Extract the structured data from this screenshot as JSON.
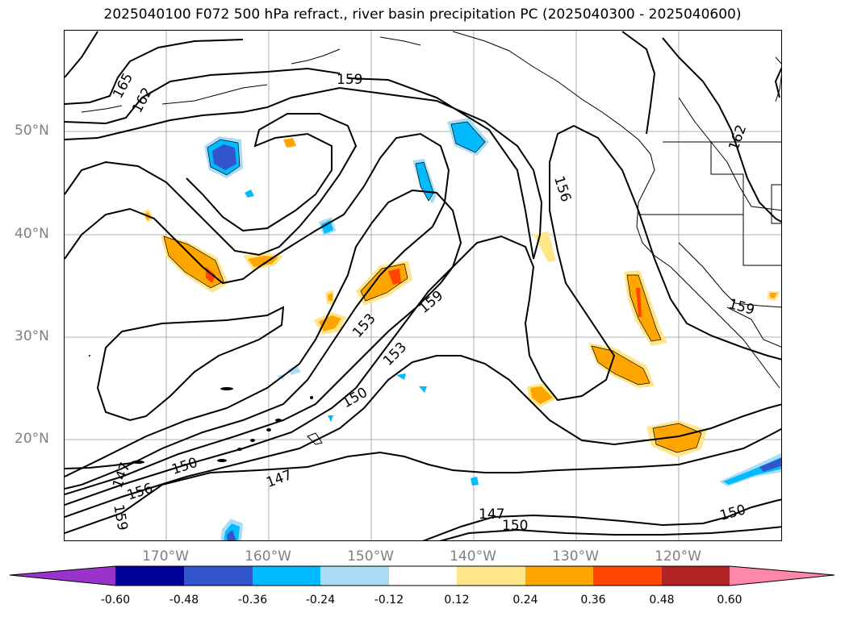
{
  "title": "2025040100 F072 500 hPa refract., river basin precipitation PC (2025040300 - 2025040600)",
  "lat_labels": [
    "50°N",
    "40°N",
    "30°N",
    "20°N"
  ],
  "lon_labels": [
    "170°W",
    "160°W",
    "150°W",
    "140°W",
    "130°W",
    "120°W"
  ],
  "contour_labels": [
    "165",
    "162",
    "159",
    "156",
    "153",
    "159",
    "153",
    "150",
    "150",
    "147",
    "147",
    "156",
    "159",
    "159",
    "162",
    "147",
    "150",
    "150"
  ],
  "colorbar": {
    "ticks": [
      "-0.60",
      "-0.48",
      "-0.36",
      "-0.24",
      "-0.12",
      "0.12",
      "0.24",
      "0.36",
      "0.48",
      "0.60"
    ],
    "colors": [
      "#9933cc",
      "#000099",
      "#3355cc",
      "#00bbff",
      "#aaddf5",
      "#ffffff",
      "#ffe68a",
      "#ffa500",
      "#ff4500",
      "#b22222",
      "#ff88aa"
    ]
  }
}
